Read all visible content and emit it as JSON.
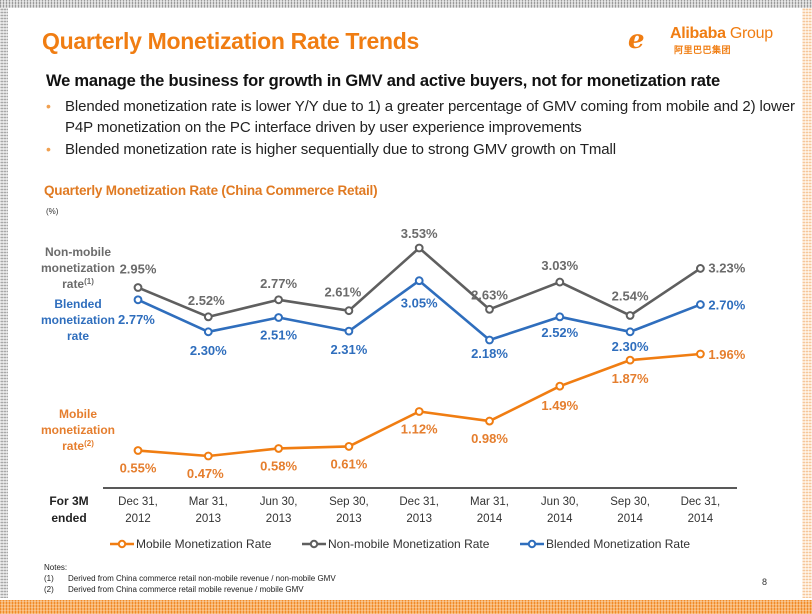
{
  "slide": {
    "title": "Quarterly Monetization Rate Trends",
    "logo": {
      "icon": "alibaba-smile-logo-icon",
      "name": "Alibaba",
      "group": "Group",
      "chinese": "阿里巴巴集团"
    },
    "headline": "We manage the business for growth in GMV and active buyers, not for monetization rate",
    "bullets": [
      "Blended monetization rate is lower Y/Y due to 1) a greater percentage of GMV coming from mobile and 2) lower P4P monetization on the PC interface driven by user experience improvements",
      "Blended monetization rate is higher sequentially due to strong GMV growth on Tmall"
    ],
    "notes": {
      "heading": "Notes:",
      "items": [
        {
          "num": "(1)",
          "text": "Derived from China commerce retail non-mobile revenue / non-mobile GMV"
        },
        {
          "num": "(2)",
          "text": "Derived from China commerce retail mobile revenue / mobile GMV"
        }
      ]
    },
    "page_number": "8",
    "colors": {
      "accent": "#f07d12",
      "mobile": "#f07d12",
      "non_mobile": "#5f5f5f",
      "blended": "#2f6ebd",
      "mobile_label": "#e57e2e",
      "non_mobile_label": "#6b6b6b",
      "blended_label": "#2f6ebd"
    }
  },
  "chart_data": {
    "type": "line",
    "title": "Quarterly Monetization Rate (China Commerce Retail)",
    "unit_label": "(%)",
    "x_header": [
      "For 3M",
      "ended"
    ],
    "categories": [
      [
        "Dec 31,",
        "2012"
      ],
      [
        "Mar 31,",
        "2013"
      ],
      [
        "Jun 30,",
        "2013"
      ],
      [
        "Sep 30,",
        "2013"
      ],
      [
        "Dec 31,",
        "2013"
      ],
      [
        "Mar 31,",
        "2014"
      ],
      [
        "Jun 30,",
        "2014"
      ],
      [
        "Sep 30,",
        "2014"
      ],
      [
        "Dec 31,",
        "2014"
      ]
    ],
    "series": [
      {
        "key": "non_mobile",
        "name": "Non-mobile Monetization Rate",
        "side_label": [
          "Non-mobile",
          "monetization",
          "rate"
        ],
        "side_label_sup": "(1)",
        "values": [
          2.95,
          2.52,
          2.77,
          2.61,
          3.53,
          2.63,
          3.03,
          2.54,
          3.23
        ],
        "labels": [
          "2.95%",
          "2.52%",
          "2.77%",
          "2.61%",
          "3.53%",
          "2.63%",
          "3.03%",
          "2.54%",
          "3.23%"
        ]
      },
      {
        "key": "blended",
        "name": "Blended Monetization Rate",
        "side_label": [
          "Blended",
          "monetization",
          "rate"
        ],
        "side_label_sup": "",
        "values": [
          2.77,
          2.3,
          2.51,
          2.31,
          3.05,
          2.18,
          2.52,
          2.3,
          2.7
        ],
        "labels": [
          "2.77%",
          "2.30%",
          "2.51%",
          "2.31%",
          "3.05%",
          "2.18%",
          "2.52%",
          "2.30%",
          "2.70%"
        ]
      },
      {
        "key": "mobile",
        "name": "Mobile Monetization Rate",
        "side_label": [
          "Mobile",
          "monetization",
          "rate"
        ],
        "side_label_sup": "(2)",
        "values": [
          0.55,
          0.47,
          0.58,
          0.61,
          1.12,
          0.98,
          1.49,
          1.87,
          1.96
        ],
        "labels": [
          "0.55%",
          "0.47%",
          "0.58%",
          "0.61%",
          "1.12%",
          "0.98%",
          "1.49%",
          "1.87%",
          "1.96%"
        ]
      }
    ],
    "legend": {
      "position": "bottom",
      "order": [
        "mobile",
        "non_mobile",
        "blended"
      ]
    },
    "grid": false,
    "y_axis_visible": false
  }
}
